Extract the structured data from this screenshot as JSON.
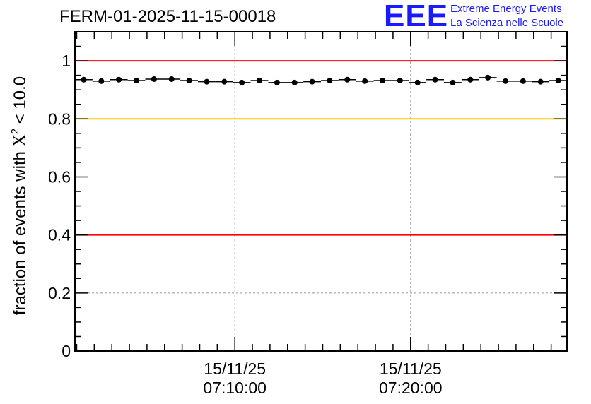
{
  "header": {
    "title": "FERM-01-2025-11-15-00018",
    "logo_text": "EEE",
    "logo_line1": "Extreme Energy Events",
    "logo_line2": "La Scienza nelle Scuole"
  },
  "colors": {
    "threshold_red": "#ff0000",
    "threshold_yellow": "#ffc800",
    "logo_blue": "#1a1aff",
    "grid": "#999999",
    "data": "#000000"
  },
  "chart_data": {
    "type": "scatter",
    "title": "FERM-01-2025-11-15-00018",
    "ylabel_prefix": "fraction of events with ",
    "ylabel_symbol": "X",
    "ylabel_sup": "2",
    "ylabel_suffix": " < 10.0",
    "xlabel": "",
    "ylim": [
      0,
      1.1
    ],
    "xlim_minutes": [
      0,
      28
    ],
    "y_ticks": [
      {
        "value": 0,
        "label": "0"
      },
      {
        "value": 0.2,
        "label": "0.2"
      },
      {
        "value": 0.4,
        "label": "0.4"
      },
      {
        "value": 0.6,
        "label": "0.6"
      },
      {
        "value": 0.8,
        "label": "0.8"
      },
      {
        "value": 1.0,
        "label": "1"
      }
    ],
    "x_ticks": [
      {
        "minute": 9.1,
        "date": "15/11/25",
        "time": "07:10:00"
      },
      {
        "minute": 19.1,
        "date": "15/11/25",
        "time": "07:20:00"
      }
    ],
    "x_minor_step_minutes": 1.0,
    "reference_lines": [
      {
        "y": 1.0,
        "color": "red"
      },
      {
        "y": 0.8,
        "color": "yellow"
      },
      {
        "y": 0.4,
        "color": "red"
      }
    ],
    "bin_width_minutes": 1.0,
    "x_minutes": [
      0.5,
      1.5,
      2.5,
      3.5,
      4.5,
      5.5,
      6.5,
      7.5,
      8.5,
      9.5,
      10.5,
      11.5,
      12.5,
      13.5,
      14.5,
      15.5,
      16.5,
      17.5,
      18.5,
      19.5,
      20.5,
      21.5,
      22.5,
      23.5,
      24.5,
      25.5,
      26.5,
      27.5
    ],
    "values": [
      0.935,
      0.93,
      0.935,
      0.932,
      0.937,
      0.937,
      0.932,
      0.928,
      0.928,
      0.925,
      0.932,
      0.925,
      0.925,
      0.928,
      0.932,
      0.935,
      0.93,
      0.932,
      0.932,
      0.925,
      0.935,
      0.925,
      0.935,
      0.942,
      0.93,
      0.93,
      0.928,
      0.932
    ]
  }
}
